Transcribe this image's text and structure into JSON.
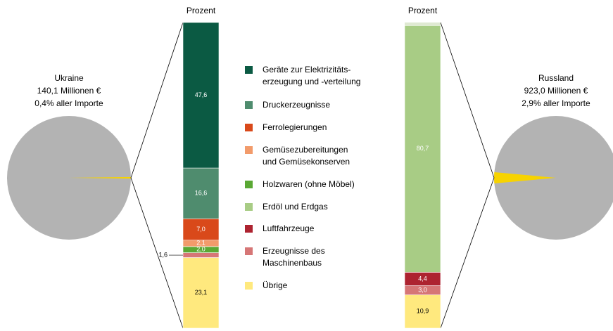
{
  "chart_data": {
    "type": "bar-of-pie",
    "categories": [
      [
        "Geräte zur Elektrizitäts-",
        "erzeugung und -verteilung"
      ],
      [
        "Druckerzeugnisse"
      ],
      [
        "Ferrolegierungen"
      ],
      [
        "Gemüsezubereitungen",
        "und Gemüsekonserven"
      ],
      [
        "Holzwaren (ohne Möbel)"
      ],
      [
        "Erdöl und Erdgas"
      ],
      [
        "Luftfahrzeuge"
      ],
      [
        "Erzeugnisse des",
        "Maschinenbaus"
      ],
      [
        "Übrige"
      ]
    ],
    "colors": [
      "#0b5a43",
      "#4f8c6e",
      "#d9491a",
      "#f29b6b",
      "#5aa834",
      "#a8cc85",
      "#ad2330",
      "#d67676",
      "#ffe97e"
    ],
    "pie_color": "#b3b3b3",
    "slice_color": "#f7d300",
    "pies": [
      {
        "name": "Ukraine",
        "subtitle": "140,1 Millionen €",
        "note": "0,4% aller Importe",
        "share": 0.4,
        "axis_label": "Prozent",
        "values": [
          47.6,
          16.6,
          7.0,
          2.1,
          2.0,
          null,
          null,
          1.6,
          23.1
        ],
        "value_labels": [
          "47,6",
          "16,6",
          "7,0",
          "2,1",
          "2,0",
          null,
          null,
          "1,6",
          "23,1"
        ]
      },
      {
        "name": "Russland",
        "subtitle": "923,0 Millionen €",
        "note": "2,9% aller Importe",
        "share": 2.9,
        "axis_label": "Prozent",
        "values": [
          null,
          null,
          null,
          null,
          null,
          80.7,
          4.4,
          3.0,
          10.9
        ],
        "value_labels": [
          null,
          null,
          null,
          null,
          null,
          "80,7",
          "4,4",
          "3,0",
          "10,9"
        ]
      }
    ]
  }
}
